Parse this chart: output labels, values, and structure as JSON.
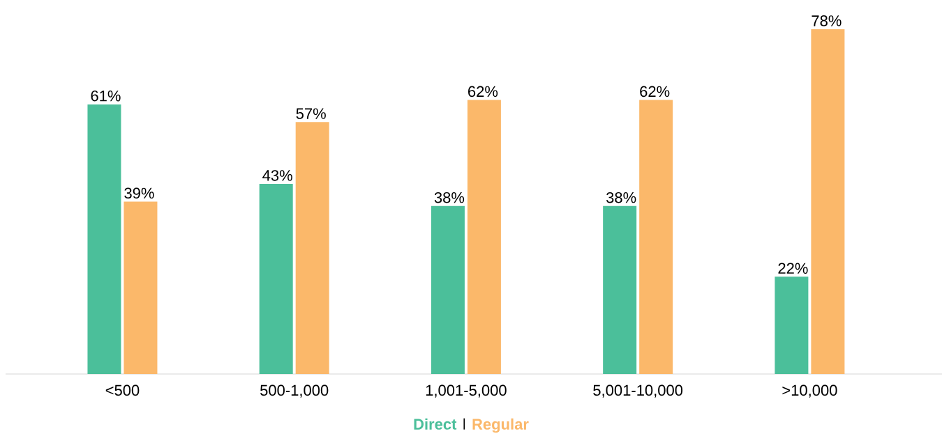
{
  "chart_data": {
    "type": "bar",
    "categories": [
      "<500",
      "500-1,000",
      "1,001-5,000",
      "5,001-10,000",
      ">10,000"
    ],
    "series": [
      {
        "name": "Direct",
        "color": "#4bbf9a",
        "values": [
          61,
          43,
          38,
          38,
          22
        ],
        "value_labels": [
          "61%",
          "43%",
          "38%",
          "38%",
          "22%"
        ]
      },
      {
        "name": "Regular",
        "color": "#fbb86a",
        "values": [
          39,
          57,
          62,
          62,
          78
        ],
        "value_labels": [
          "39%",
          "57%",
          "62%",
          "62%",
          "78%"
        ]
      }
    ],
    "legend": "bottom"
  }
}
